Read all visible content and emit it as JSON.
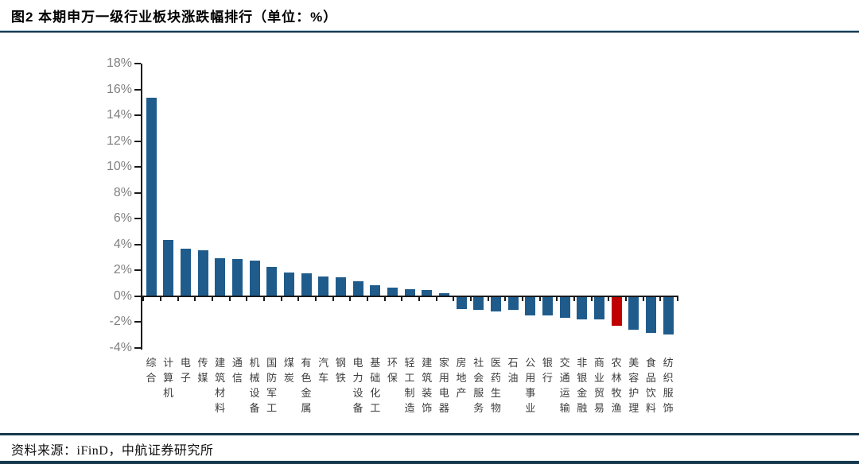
{
  "header": {
    "title": "图2  本期申万一级行业板块涨跌幅排行（单位：%）"
  },
  "footer": {
    "source": "资料来源：iFinD，中航证券研究所"
  },
  "colors": {
    "bar": "#1F5C8C",
    "highlight": "#C00000",
    "axis": "#1a1a1a",
    "y_tick_label": "#808080",
    "x_label": "#3d3d3d",
    "rule_dark": "#16384c",
    "rule_light": "#a8c6d8"
  },
  "chart_data": {
    "type": "bar",
    "title": "本期申万一级行业板块涨跌幅排行",
    "unit": "%",
    "categories": [
      "综合",
      "计算机",
      "电子",
      "传媒",
      "建筑材料",
      "通信",
      "机械设备",
      "国防军工",
      "煤炭",
      "有色金属",
      "汽车",
      "钢铁",
      "电力设备",
      "基础化工",
      "环保",
      "轻工制造",
      "建筑装饰",
      "家用电器",
      "房地产",
      "社会服务",
      "医药生物",
      "石油",
      "公用事业",
      "银行",
      "交通运输",
      "非银金融",
      "商业贸易",
      "农林牧渔",
      "美容护理",
      "食品饮料",
      "纺织服饰"
    ],
    "values": [
      15.3,
      4.3,
      3.6,
      3.5,
      2.9,
      2.8,
      2.7,
      2.2,
      1.8,
      1.7,
      1.5,
      1.4,
      1.1,
      0.8,
      0.6,
      0.5,
      0.4,
      0.2,
      -0.9,
      -1.0,
      -1.1,
      -1.0,
      -1.4,
      -1.4,
      -1.6,
      -1.7,
      -1.7,
      -2.2,
      -2.5,
      -2.8,
      -2.9
    ],
    "highlight_index": 27,
    "ylim": [
      -4,
      18
    ],
    "y_ticks": [
      18,
      16,
      14,
      12,
      10,
      8,
      6,
      4,
      2,
      0,
      -2,
      -4
    ],
    "y_tick_suffix": "%",
    "grid": false,
    "legend": false
  }
}
